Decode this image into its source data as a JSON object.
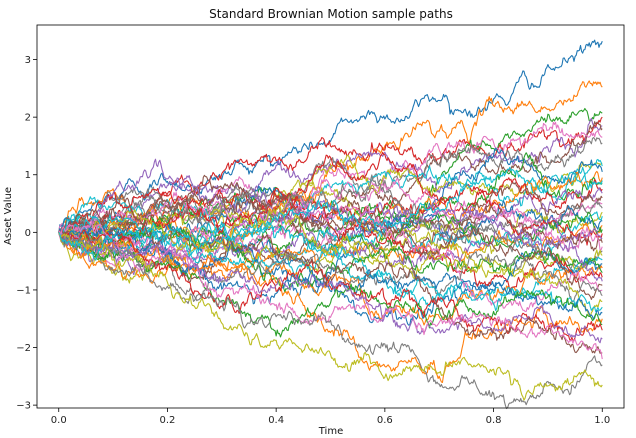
{
  "chart_data": {
    "type": "line",
    "title": "Standard Brownian Motion sample paths",
    "xlabel": "Time",
    "ylabel": "Asset Value",
    "xlim": [
      -0.04,
      1.04
    ],
    "ylim": [
      -3.05,
      3.6
    ],
    "xticks": [
      "0.0",
      "0.2",
      "0.4",
      "0.6",
      "0.8",
      "1.0"
    ],
    "yticks": [
      "−3",
      "−2",
      "−1",
      "0",
      "1",
      "2",
      "3"
    ],
    "grid": false,
    "legend": "none",
    "n_paths": 50,
    "time_start": 0.0,
    "time_end": 1.0,
    "start_value": 0,
    "colors": [
      "#1f77b4",
      "#ff7f0e",
      "#2ca02c",
      "#d62728",
      "#9467bd",
      "#8c564b",
      "#e377c2",
      "#7f7f7f",
      "#bcbd22",
      "#17becf"
    ],
    "final_values": [
      3.32,
      2.52,
      2.07,
      2.0,
      1.85,
      1.8,
      1.65,
      1.55,
      1.2,
      1.15,
      1.05,
      0.95,
      0.85,
      0.75,
      0.68,
      0.6,
      0.5,
      0.42,
      0.35,
      0.28,
      0.2,
      0.12,
      0.05,
      -0.02,
      -0.1,
      -0.18,
      -0.25,
      -0.32,
      -0.4,
      -0.48,
      -0.55,
      -0.62,
      -0.7,
      -0.78,
      -0.85,
      -0.92,
      -1.0,
      -1.1,
      -1.2,
      -1.3,
      -1.4,
      -1.5,
      -1.6,
      -1.7,
      -1.85,
      -2.1,
      -2.2,
      -2.3,
      -2.65,
      0.9
    ]
  }
}
